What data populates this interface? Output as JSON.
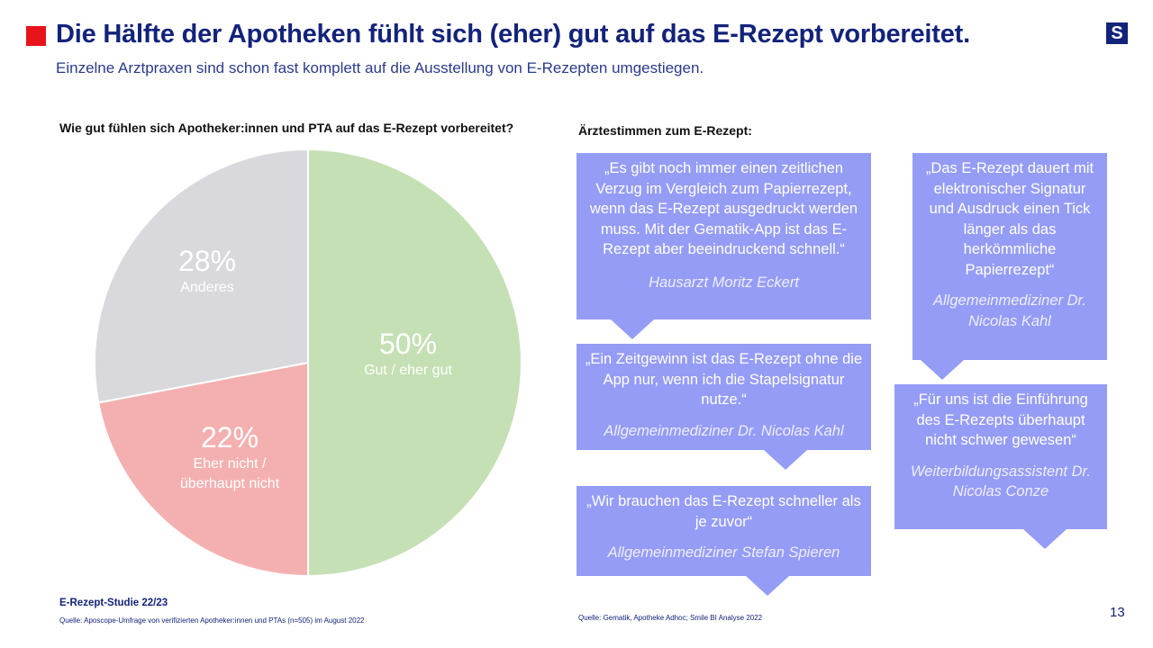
{
  "header": {
    "title": "Die Hälfte der Apotheken fühlt sich (eher) gut auf das E-Rezept vorbereitet.",
    "subtitle": "Einzelne Arztpraxen sind schon fast komplett auf die Ausstellung von E-Rezepten umgestiegen.",
    "logo": "S"
  },
  "chart_data": {
    "type": "pie",
    "title": "Wie gut fühlen sich Apotheker:innen und PTA auf das E-Rezept vorbereitet?",
    "slices": [
      {
        "label": "Gut / eher gut",
        "value": 50,
        "display": "50%",
        "color": "#c5e0b4"
      },
      {
        "label": "Eher nicht / überhaupt nicht",
        "line1": "Eher nicht /",
        "line2": "überhaupt nicht",
        "value": 22,
        "display": "22%",
        "color": "#f4b0b0"
      },
      {
        "label": "Anderes",
        "value": 28,
        "display": "28%",
        "color": "#d9d8dc"
      }
    ]
  },
  "quotes": {
    "title": "Ärztestimmen zum E-Rezept:",
    "items": [
      {
        "text": "„Es gibt noch immer einen zeitlichen Verzug im Vergleich zum Papierrezept, wenn das E-Rezept ausgedruckt werden muss. Mit der Gematik-App ist das E-Rezept aber beeindruckend schnell.“",
        "author": "Hausarzt Moritz Eckert"
      },
      {
        "text": "„Ein Zeitgewinn ist das E-Rezept ohne die App nur, wenn ich die Stapelsignatur nutze.“",
        "author": "Allgemeinmediziner Dr. Nicolas Kahl"
      },
      {
        "text": "„Wir brauchen das E-Rezept schneller als je zuvor“",
        "author": "Allgemeinmediziner Stefan Spieren"
      },
      {
        "text": "„Das E-Rezept dauert mit elektronischer Signatur und Ausdruck einen Tick länger als das herkömmliche Papierrezept“",
        "author": "Allgemeinmediziner Dr. Nicolas Kahl"
      },
      {
        "text": "„Für uns ist die Einführung des E-Rezepts überhaupt nicht schwer gewesen“",
        "author": "Weiterbildungsassistent Dr. Nicolas Conze"
      }
    ]
  },
  "footer": {
    "study": "E-Rezept-Studie 22/23",
    "source_left": "Quelle: Aposcope-Umfrage von verifizierten Apotheker:innen und PTAs (n=505) im August 2022",
    "source_right": "Quelle: Gematik, Apotheke Adhoc; Smile BI Analyse 2022",
    "page": "13"
  }
}
